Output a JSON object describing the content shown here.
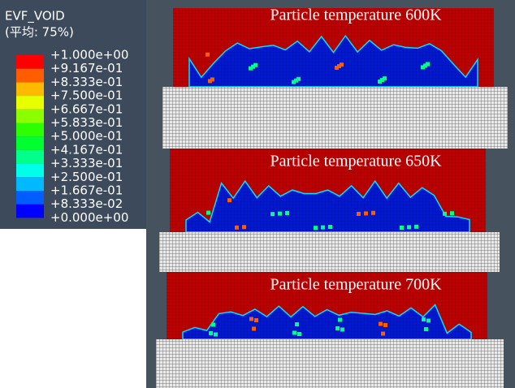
{
  "legend": {
    "title": "EVF_VOID",
    "subtitle": "(平均: 75%)",
    "labels": [
      "+1.000e+00",
      "+9.167e-01",
      "+8.333e-01",
      "+7.500e-01",
      "+6.667e-01",
      "+5.833e-01",
      "+5.000e-01",
      "+4.167e-01",
      "+3.333e-01",
      "+2.500e-01",
      "+1.667e-01",
      "+8.333e-02",
      "+0.000e+00"
    ],
    "colors": [
      "#ff0000",
      "#ff5d00",
      "#ffb900",
      "#e8ff00",
      "#8bff00",
      "#2eff00",
      "#00ff2e",
      "#00ff8b",
      "#00ffe8",
      "#00b9ff",
      "#005dff",
      "#0000ff"
    ]
  },
  "panels": [
    {
      "title": "Particle temperature 600K"
    },
    {
      "title": "Particle temperature 650K"
    },
    {
      "title": "Particle temperature 700K"
    }
  ]
}
